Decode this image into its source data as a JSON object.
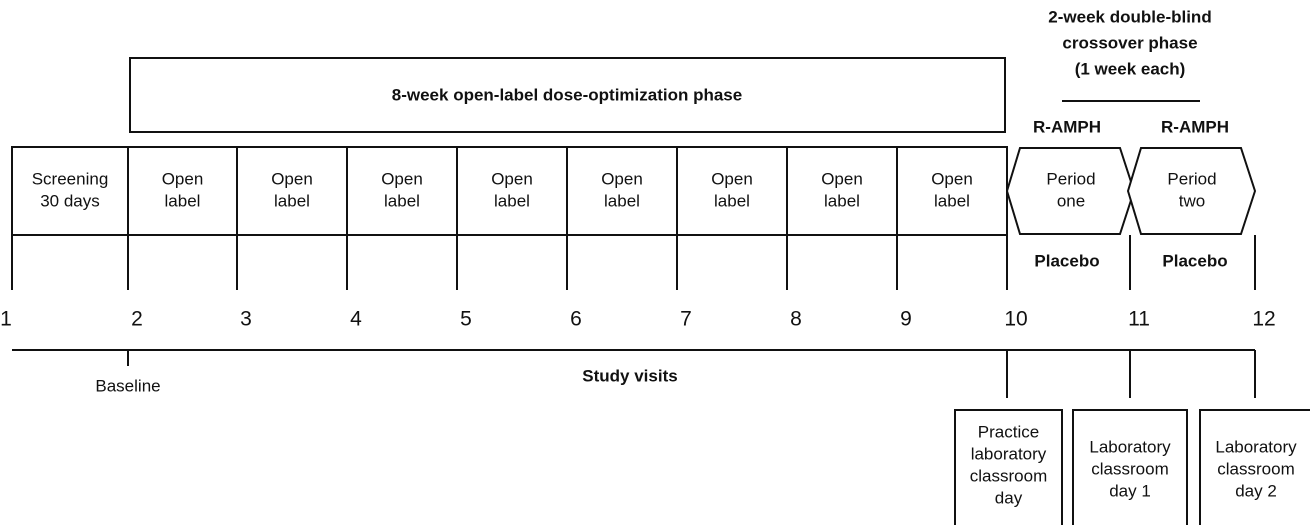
{
  "open_label_phase": {
    "title": "8-week open-label dose-optimization phase"
  },
  "crossover_phase": {
    "title_lines": [
      "2-week double-blind",
      "crossover phase",
      "(1 week each)"
    ],
    "treatment_labels": [
      "R-AMPH",
      "R-AMPH"
    ],
    "placebo_labels": [
      "Placebo",
      "Placebo"
    ]
  },
  "segments": [
    {
      "lines": [
        "Screening",
        "30 days"
      ]
    },
    {
      "lines": [
        "Open",
        "label"
      ]
    },
    {
      "lines": [
        "Open",
        "label"
      ]
    },
    {
      "lines": [
        "Open",
        "label"
      ]
    },
    {
      "lines": [
        "Open",
        "label"
      ]
    },
    {
      "lines": [
        "Open",
        "label"
      ]
    },
    {
      "lines": [
        "Open",
        "label"
      ]
    },
    {
      "lines": [
        "Open",
        "label"
      ]
    },
    {
      "lines": [
        "Open",
        "label"
      ]
    },
    {
      "lines": [
        "Period",
        "one"
      ]
    },
    {
      "lines": [
        "Period",
        "two"
      ]
    }
  ],
  "visits": [
    1,
    2,
    3,
    4,
    5,
    6,
    7,
    8,
    9,
    10,
    11,
    12
  ],
  "timeline": {
    "baseline_label": "Baseline",
    "label": "Study visits"
  },
  "lab_days": [
    {
      "lines": [
        "Practice",
        "laboratory",
        "classroom",
        "day"
      ]
    },
    {
      "lines": [
        "Laboratory",
        "classroom",
        "day 1"
      ]
    },
    {
      "lines": [
        "Laboratory",
        "classroom",
        "day 2"
      ]
    }
  ]
}
